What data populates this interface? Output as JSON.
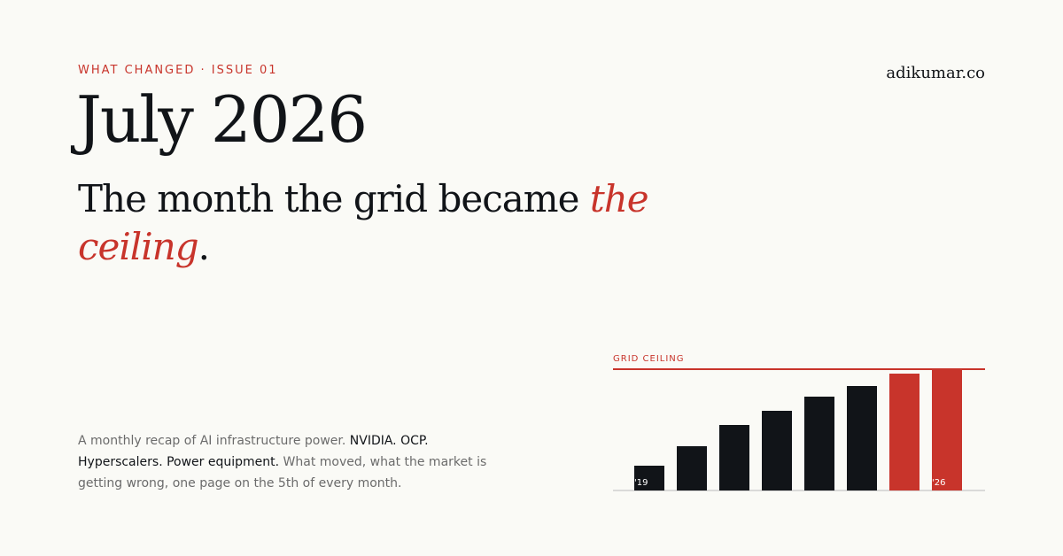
{
  "header": {
    "kicker": "WHAT CHANGED · ISSUE 01",
    "brand": "adikumar.co"
  },
  "title": "July 2026",
  "headline": {
    "main": "The month the grid became ",
    "emphasis_1": "the",
    "emphasis_2": "ceiling",
    "end": "."
  },
  "description": {
    "part1": "A monthly recap of AI infrastructure power. ",
    "bold": "NVIDIA. OCP. Hyperscalers. Power equipment.",
    "part2": " What moved, what the market is getting wrong, one page on the 5th of every month."
  },
  "colors": {
    "accent": "#c8342b",
    "ink": "#111418",
    "muted": "#6b6b6b",
    "background": "#fafaf6",
    "axis": "#cfcfcf"
  },
  "chart_data": {
    "type": "bar",
    "label": "GRID CEILING",
    "values": [
      28,
      50,
      74,
      90,
      106,
      118,
      132,
      136
    ],
    "ceiling": 136,
    "ylim": [
      0,
      136
    ],
    "highlight": [
      false,
      false,
      false,
      false,
      false,
      false,
      true,
      true
    ],
    "tick_labels": [
      "'19",
      "",
      "",
      "",
      "",
      "",
      "",
      "'26"
    ]
  }
}
